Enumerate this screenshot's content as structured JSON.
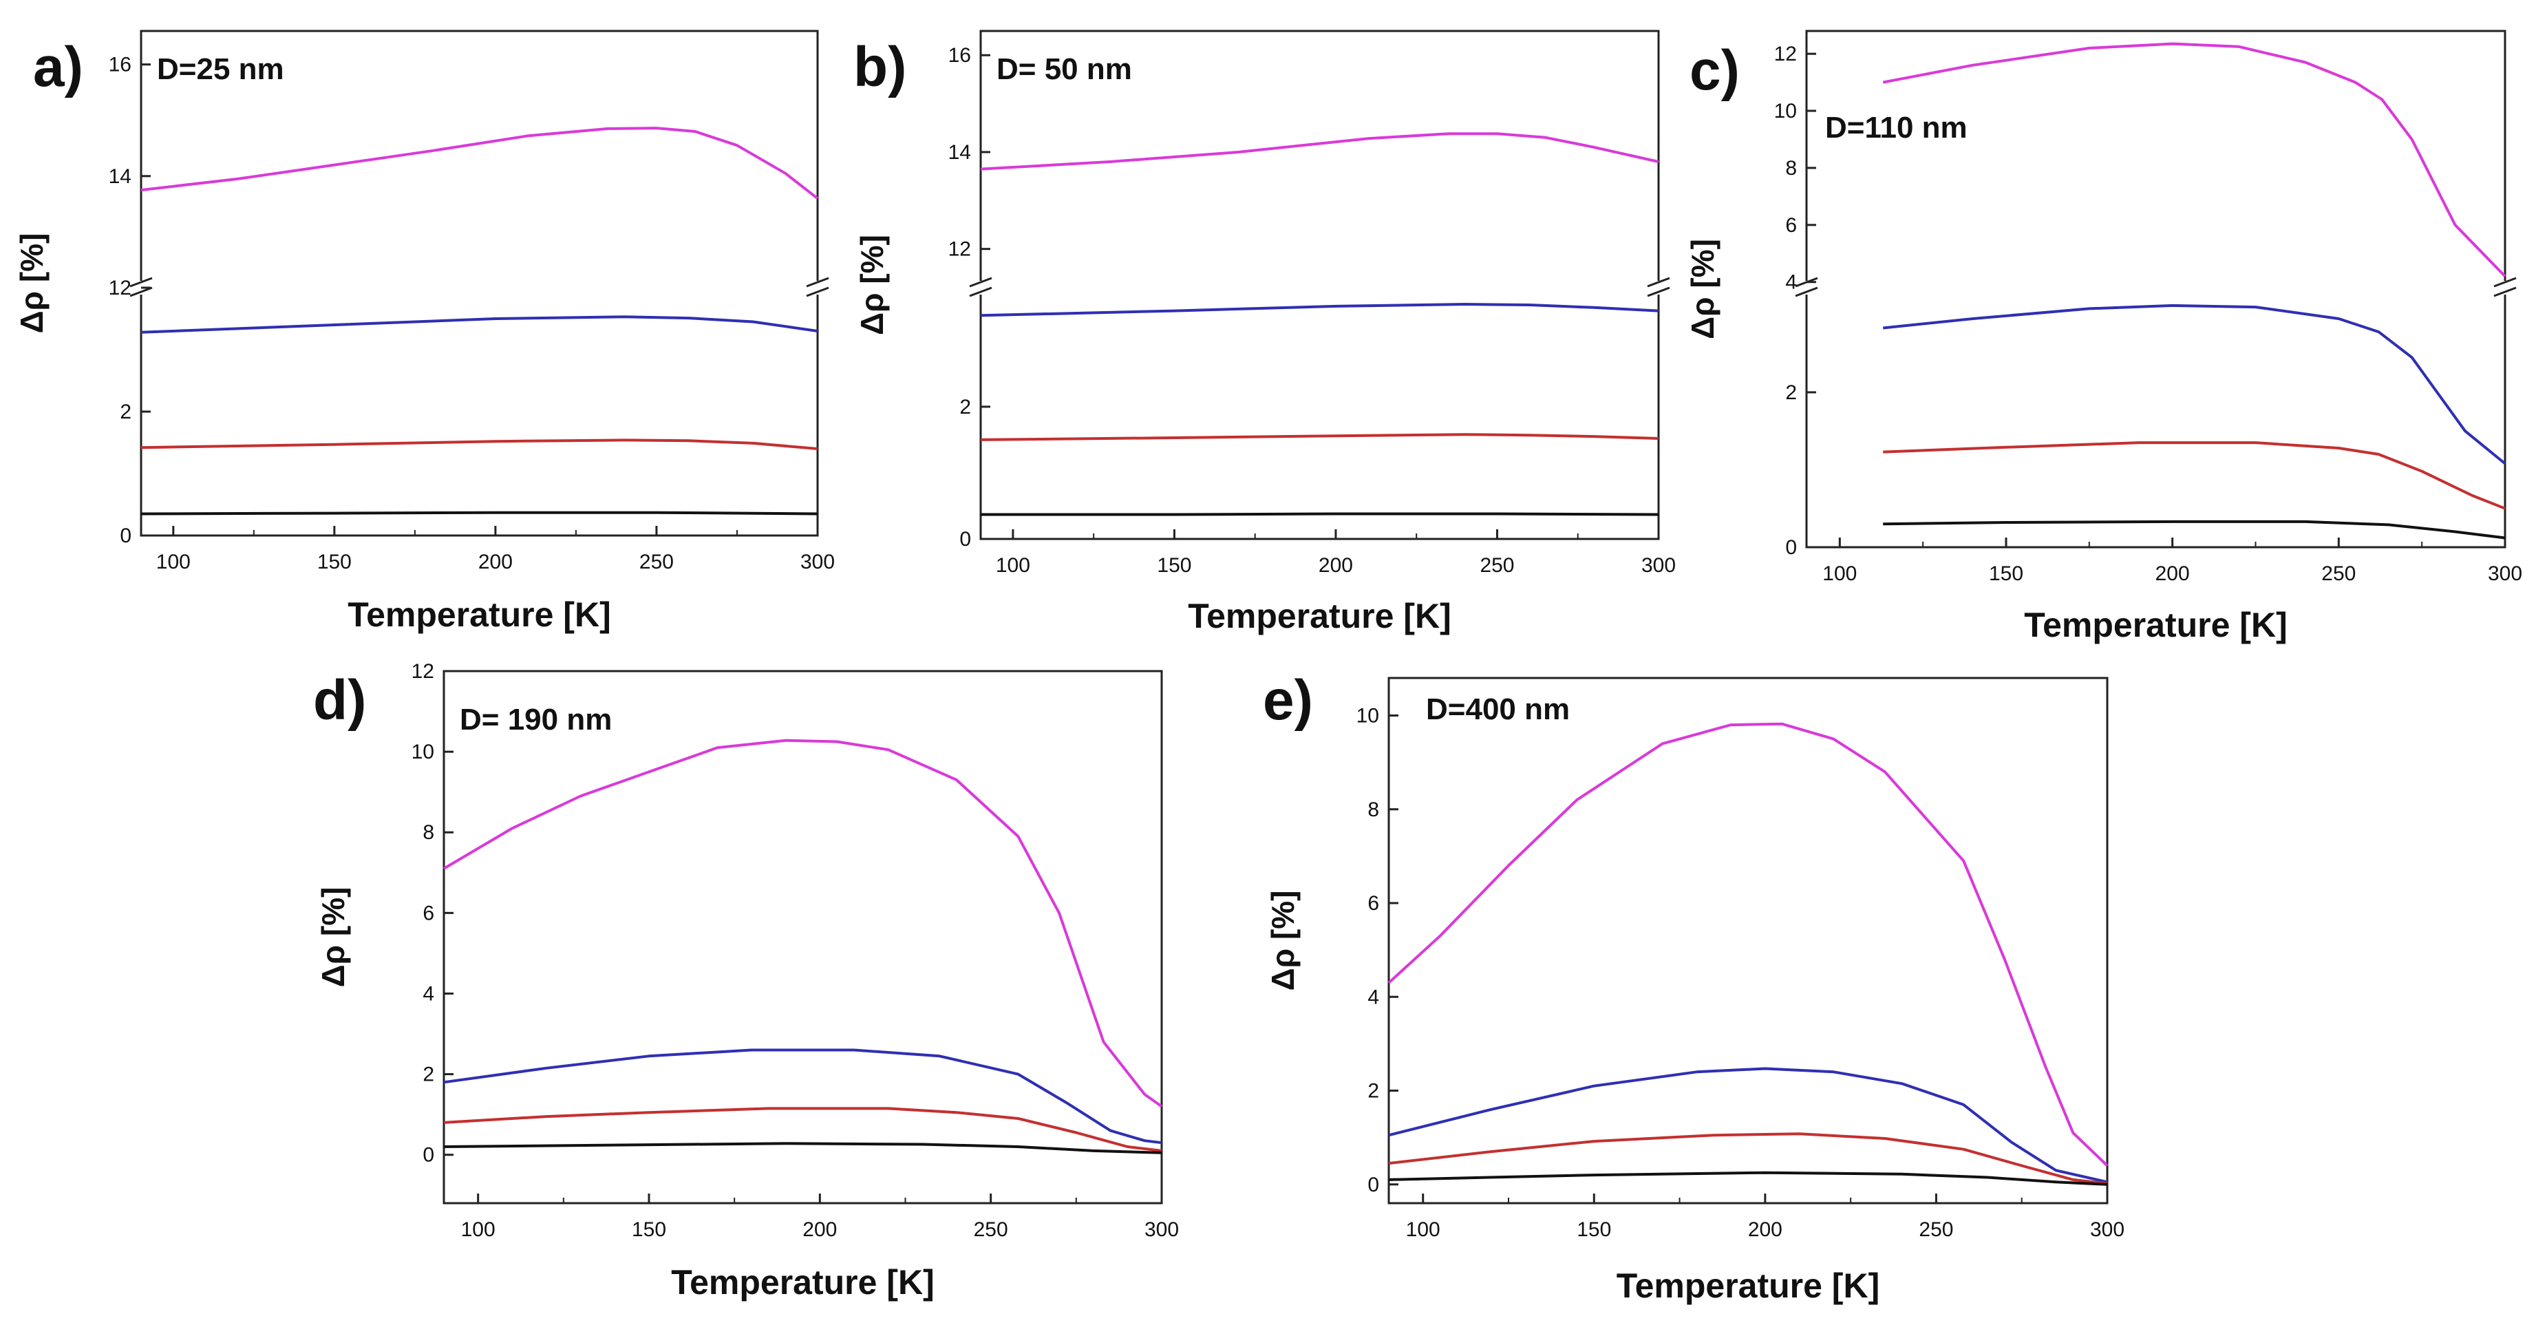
{
  "figure": {
    "description_colors": {
      "magenta": "#d93ad9",
      "blue": "#2f2fb3",
      "red": "#c43030",
      "black": "#111111"
    }
  },
  "chart_data": [
    {
      "type": "line",
      "panel_label": "a)",
      "title": "D=25 nm",
      "xlabel": "Temperature [K]",
      "ylabel": "Δρ [%]",
      "xlim": [
        90,
        300
      ],
      "x_ticks": [
        "100",
        "150",
        "200",
        "250",
        "300"
      ],
      "y_ticks_lower": [
        "0",
        "2"
      ],
      "y_ticks_upper": [
        "12",
        "14",
        "16"
      ],
      "axis_break": true,
      "lower_ylim": [
        0,
        4.0
      ],
      "upper_ylim": [
        12,
        16.6
      ],
      "series": [
        {
          "name": "magenta",
          "color": "#d93ad9",
          "segment": "upper",
          "x": [
            90,
            120,
            150,
            180,
            210,
            235,
            250,
            262,
            275,
            290,
            300
          ],
          "y": [
            13.75,
            13.95,
            14.2,
            14.45,
            14.72,
            14.85,
            14.86,
            14.8,
            14.55,
            14.05,
            13.6
          ]
        },
        {
          "name": "blue",
          "color": "#2f2fb3",
          "segment": "lower",
          "x": [
            90,
            150,
            200,
            240,
            260,
            280,
            300
          ],
          "y": [
            3.28,
            3.4,
            3.5,
            3.53,
            3.51,
            3.45,
            3.3
          ]
        },
        {
          "name": "red",
          "color": "#c43030",
          "segment": "lower",
          "x": [
            90,
            150,
            200,
            240,
            260,
            280,
            300
          ],
          "y": [
            1.42,
            1.47,
            1.52,
            1.54,
            1.53,
            1.49,
            1.4
          ]
        },
        {
          "name": "black",
          "color": "#111111",
          "segment": "lower",
          "x": [
            90,
            150,
            200,
            250,
            300
          ],
          "y": [
            0.35,
            0.36,
            0.37,
            0.37,
            0.35
          ]
        }
      ]
    },
    {
      "type": "line",
      "panel_label": "b)",
      "title": "D= 50 nm",
      "xlabel": "Temperature [K]",
      "ylabel": "Δρ [%]",
      "xlim": [
        90,
        300
      ],
      "x_ticks": [
        "100",
        "150",
        "200",
        "250",
        "300"
      ],
      "y_ticks_lower": [
        "0",
        "2"
      ],
      "y_ticks_upper": [
        "12",
        "14",
        "16"
      ],
      "axis_break": true,
      "lower_ylim": [
        0,
        3.8
      ],
      "upper_ylim": [
        11.2,
        16.5
      ],
      "series": [
        {
          "name": "magenta",
          "color": "#d93ad9",
          "segment": "upper",
          "x": [
            90,
            130,
            170,
            210,
            235,
            250,
            265,
            280,
            300
          ],
          "y": [
            13.65,
            13.8,
            14.0,
            14.28,
            14.38,
            14.38,
            14.3,
            14.1,
            13.8
          ]
        },
        {
          "name": "blue",
          "color": "#2f2fb3",
          "segment": "lower",
          "x": [
            90,
            150,
            200,
            240,
            260,
            280,
            300
          ],
          "y": [
            3.38,
            3.45,
            3.52,
            3.55,
            3.54,
            3.5,
            3.45
          ]
        },
        {
          "name": "red",
          "color": "#c43030",
          "segment": "lower",
          "x": [
            90,
            150,
            200,
            240,
            260,
            280,
            300
          ],
          "y": [
            1.5,
            1.53,
            1.56,
            1.58,
            1.57,
            1.55,
            1.52
          ]
        },
        {
          "name": "black",
          "color": "#111111",
          "segment": "lower",
          "x": [
            90,
            150,
            200,
            250,
            300
          ],
          "y": [
            0.37,
            0.37,
            0.38,
            0.38,
            0.37
          ]
        }
      ]
    },
    {
      "type": "line",
      "panel_label": "c)",
      "title": "D=110 nm",
      "xlabel": "Temperature [K]",
      "ylabel": "Δρ [%]",
      "xlim": [
        90,
        300
      ],
      "x_ticks": [
        "100",
        "150",
        "200",
        "250",
        "300"
      ],
      "y_ticks_lower": [
        "0",
        "2"
      ],
      "y_ticks_upper": [
        "4",
        "6",
        "8",
        "10",
        "12"
      ],
      "axis_break": true,
      "lower_ylim": [
        0,
        3.35
      ],
      "upper_ylim": [
        3.8,
        12.8
      ],
      "series": [
        {
          "name": "magenta",
          "color": "#d93ad9",
          "segment": "upper",
          "x": [
            113,
            140,
            175,
            200,
            220,
            240,
            255,
            263,
            272,
            285,
            300
          ],
          "y": [
            11.0,
            11.6,
            12.2,
            12.35,
            12.25,
            11.7,
            11.0,
            10.4,
            9.0,
            6.0,
            4.2
          ]
        },
        {
          "name": "blue",
          "color": "#2f2fb3",
          "segment": "lower",
          "x": [
            113,
            140,
            175,
            200,
            225,
            250,
            262,
            272,
            288,
            300
          ],
          "y": [
            2.83,
            2.95,
            3.08,
            3.12,
            3.1,
            2.95,
            2.78,
            2.45,
            1.5,
            1.08
          ]
        },
        {
          "name": "red",
          "color": "#c43030",
          "segment": "lower",
          "x": [
            113,
            150,
            190,
            225,
            250,
            262,
            275,
            290,
            300
          ],
          "y": [
            1.23,
            1.29,
            1.35,
            1.35,
            1.28,
            1.2,
            0.98,
            0.67,
            0.5
          ]
        },
        {
          "name": "black",
          "color": "#111111",
          "segment": "lower",
          "x": [
            113,
            150,
            200,
            240,
            265,
            285,
            300
          ],
          "y": [
            0.3,
            0.32,
            0.33,
            0.33,
            0.29,
            0.2,
            0.12
          ]
        }
      ]
    },
    {
      "type": "line",
      "panel_label": "d)",
      "title": "D= 190 nm",
      "xlabel": "Temperature [K]",
      "ylabel": "Δρ [%]",
      "xlim": [
        90,
        300
      ],
      "ylim": [
        -1.2,
        12
      ],
      "x_ticks": [
        "100",
        "150",
        "200",
        "250",
        "300"
      ],
      "y_ticks": [
        "0",
        "2",
        "4",
        "6",
        "8",
        "10",
        "12"
      ],
      "axis_break": false,
      "series": [
        {
          "name": "magenta",
          "color": "#d93ad9",
          "x": [
            90,
            110,
            130,
            150,
            170,
            190,
            205,
            220,
            240,
            258,
            270,
            283,
            295,
            300
          ],
          "y": [
            7.1,
            8.1,
            8.9,
            9.5,
            10.1,
            10.28,
            10.25,
            10.05,
            9.3,
            7.9,
            6.0,
            2.8,
            1.5,
            1.2
          ]
        },
        {
          "name": "blue",
          "color": "#2f2fb3",
          "x": [
            90,
            120,
            150,
            180,
            210,
            235,
            258,
            272,
            285,
            295,
            300
          ],
          "y": [
            1.8,
            2.15,
            2.45,
            2.6,
            2.6,
            2.45,
            2.0,
            1.3,
            0.6,
            0.35,
            0.3
          ]
        },
        {
          "name": "red",
          "color": "#c43030",
          "x": [
            90,
            120,
            150,
            185,
            220,
            240,
            258,
            275,
            290,
            300
          ],
          "y": [
            0.8,
            0.95,
            1.05,
            1.15,
            1.15,
            1.05,
            0.9,
            0.55,
            0.2,
            0.1
          ]
        },
        {
          "name": "black",
          "color": "#111111",
          "x": [
            90,
            150,
            190,
            230,
            258,
            280,
            300
          ],
          "y": [
            0.2,
            0.25,
            0.28,
            0.26,
            0.2,
            0.1,
            0.05
          ]
        }
      ]
    },
    {
      "type": "line",
      "panel_label": "e)",
      "title": "D=400 nm",
      "xlabel": "Temperature [K]",
      "ylabel": "Δρ [%]",
      "xlim": [
        90,
        300
      ],
      "ylim": [
        -0.4,
        10.8
      ],
      "x_ticks": [
        "100",
        "150",
        "200",
        "250",
        "300"
      ],
      "y_ticks": [
        "0",
        "2",
        "4",
        "6",
        "8",
        "10"
      ],
      "axis_break": false,
      "series": [
        {
          "name": "magenta",
          "color": "#d93ad9",
          "x": [
            90,
            105,
            125,
            145,
            170,
            190,
            205,
            220,
            235,
            258,
            270,
            282,
            290,
            300
          ],
          "y": [
            4.3,
            5.3,
            6.8,
            8.2,
            9.4,
            9.8,
            9.82,
            9.5,
            8.8,
            6.9,
            4.8,
            2.5,
            1.1,
            0.4
          ]
        },
        {
          "name": "blue",
          "color": "#2f2fb3",
          "x": [
            90,
            120,
            150,
            180,
            200,
            220,
            240,
            258,
            272,
            285,
            300
          ],
          "y": [
            1.05,
            1.6,
            2.1,
            2.4,
            2.47,
            2.4,
            2.15,
            1.7,
            0.9,
            0.3,
            0.05
          ]
        },
        {
          "name": "red",
          "color": "#c43030",
          "x": [
            90,
            120,
            150,
            185,
            210,
            235,
            258,
            275,
            290,
            300
          ],
          "y": [
            0.45,
            0.7,
            0.92,
            1.05,
            1.08,
            0.98,
            0.75,
            0.4,
            0.1,
            0.02
          ]
        },
        {
          "name": "black",
          "color": "#111111",
          "x": [
            90,
            150,
            200,
            240,
            265,
            285,
            300
          ],
          "y": [
            0.1,
            0.2,
            0.25,
            0.22,
            0.15,
            0.05,
            0.0
          ]
        }
      ]
    }
  ]
}
